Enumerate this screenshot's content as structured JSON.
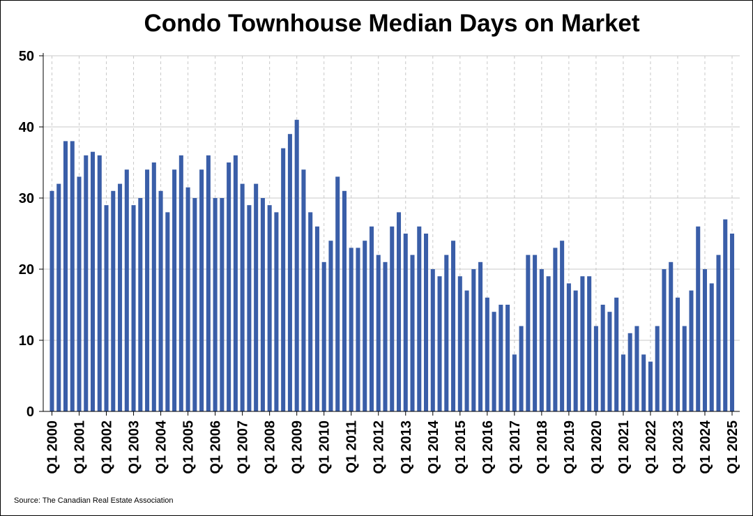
{
  "chart_data": {
    "type": "bar",
    "title": "Condo Townhouse Median Days on Market",
    "source": "Source: The Canadian Real Estate Association",
    "xlabel": "",
    "ylabel": "",
    "ylim": [
      0,
      50
    ],
    "yticks": [
      0,
      10,
      20,
      30,
      40,
      50
    ],
    "grid": true,
    "bar_color": "#3a5ea8",
    "start_year": 2000,
    "start_quarter": 1,
    "x_tick_labels": [
      "Q1 2000",
      "Q1 2001",
      "Q1 2002",
      "Q1 2003",
      "Q1 2004",
      "Q1 2005",
      "Q1 2006",
      "Q1 2007",
      "Q1 2008",
      "Q1 2009",
      "Q1 2010",
      "Q1 2011",
      "Q1 2012",
      "Q1 2013",
      "Q1 2014",
      "Q1 2015",
      "Q1 2016",
      "Q1 2017",
      "Q1 2018",
      "Q1 2019",
      "Q1 2020",
      "Q1 2021",
      "Q1 2022",
      "Q1 2023",
      "Q1 2024",
      "Q1 2025"
    ],
    "values": [
      31,
      32,
      38,
      38,
      33,
      36,
      36.5,
      36,
      29,
      31,
      32,
      34,
      29,
      30,
      34,
      35,
      31,
      28,
      34,
      36,
      31.5,
      30,
      34,
      36,
      30,
      30,
      35,
      36,
      32,
      29,
      32,
      30,
      29,
      28,
      37,
      39,
      41,
      34,
      28,
      26,
      21,
      24,
      33,
      31,
      23,
      23,
      24,
      26,
      22,
      21,
      26,
      28,
      25,
      22,
      26,
      25,
      20,
      19,
      22,
      24,
      19,
      17,
      20,
      21,
      16,
      14,
      15,
      15,
      8,
      12,
      22,
      22,
      20,
      19,
      23,
      24,
      18,
      17,
      19,
      19,
      12,
      15,
      14,
      16,
      8,
      11,
      12,
      8,
      7,
      12,
      20,
      21,
      16,
      12,
      17,
      26,
      20,
      18,
      22,
      27,
      25
    ]
  }
}
